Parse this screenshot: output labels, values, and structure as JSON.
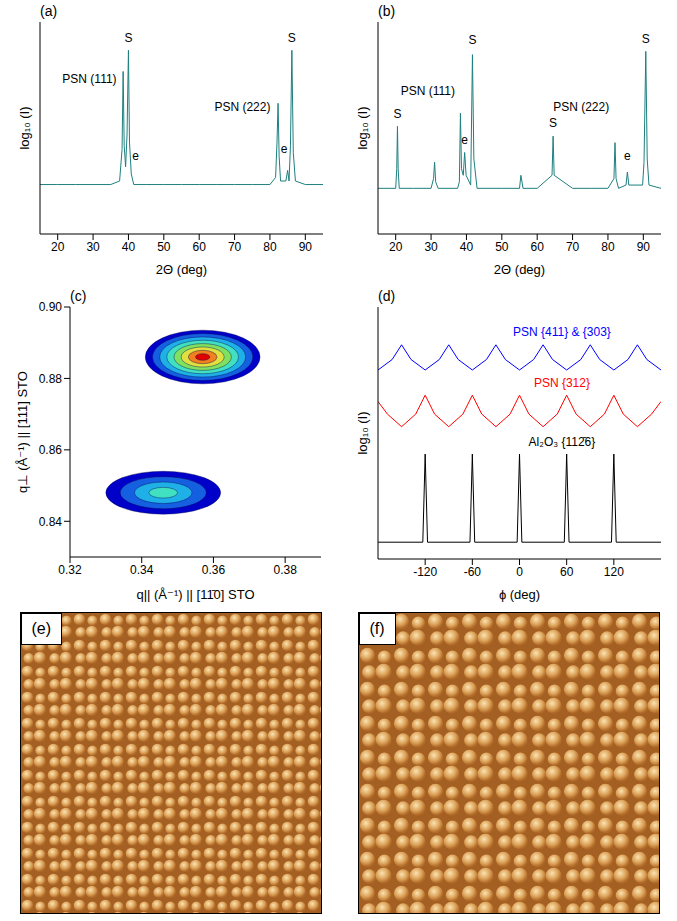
{
  "chart_data": [
    {
      "type": "line",
      "title": "(a)",
      "x_label": "2Θ (deg)",
      "y_label": "log₁₀ (I)",
      "xlim": [
        15,
        95
      ],
      "xticks": [
        20,
        30,
        40,
        50,
        60,
        70,
        80,
        90
      ],
      "ylim": [
        0,
        6
      ],
      "yticks": [],
      "tick_labels": "x",
      "series": [
        {
          "color": "#1f7f7f",
          "x": [
            15,
            20,
            25,
            30,
            35,
            37.5,
            38.2,
            38.5,
            38.8,
            39.2,
            39.6,
            40.0,
            40.3,
            40.8,
            41.5,
            45,
            50,
            55,
            60,
            65,
            70,
            75,
            80,
            81.6,
            82.0,
            82.3,
            82.6,
            83.0,
            84.5,
            85.0,
            85.4,
            85.8,
            86.2,
            86.6,
            87.2,
            90,
            95
          ],
          "values": [
            1.4,
            1.4,
            1.4,
            1.4,
            1.4,
            1.5,
            2.4,
            4.6,
            2.5,
            1.9,
            2.8,
            5.2,
            2.6,
            1.7,
            1.4,
            1.4,
            1.4,
            1.4,
            1.4,
            1.4,
            1.4,
            1.4,
            1.4,
            1.6,
            2.6,
            3.7,
            2.2,
            1.5,
            1.5,
            1.8,
            1.5,
            2.5,
            5.2,
            2.3,
            1.5,
            1.4,
            1.4
          ]
        }
      ],
      "annotations": [
        {
          "text": "PSN (111)",
          "x": 37.5,
          "y": 4.4
        },
        {
          "text": "S",
          "x": 40.0,
          "y": 5.55
        },
        {
          "text": "e",
          "x": 42,
          "y": 2.2
        },
        {
          "text": "PSN (222)",
          "x": 81,
          "y": 3.6
        },
        {
          "text": "e",
          "x": 84,
          "y": 2.4
        },
        {
          "text": "S",
          "x": 86.2,
          "y": 5.55
        }
      ]
    },
    {
      "type": "line",
      "title": "(b)",
      "x_label": "2Θ (deg)",
      "y_label": "log₁₀ (I)",
      "xlim": [
        15,
        95
      ],
      "xticks": [
        20,
        30,
        40,
        50,
        60,
        70,
        80,
        90
      ],
      "ylim": [
        0,
        6.5
      ],
      "yticks": [],
      "tick_labels": "x",
      "series": [
        {
          "color": "#1f7f7f",
          "x": [
            15,
            20,
            20.3,
            20.5,
            20.7,
            21,
            25,
            30,
            30.7,
            31,
            31.3,
            32,
            37.5,
            38.0,
            38.3,
            38.6,
            39.1,
            39.5,
            39.9,
            41.2,
            41.7,
            42.1,
            43,
            50,
            55,
            55.4,
            56,
            60,
            64.2,
            64.5,
            64.8,
            70,
            75,
            80,
            81.7,
            82.0,
            82.3,
            83,
            85.1,
            85.5,
            85.9,
            89.8,
            90.2,
            90.7,
            91.1,
            91.6,
            95
          ],
          "values": [
            1.4,
            1.4,
            2.0,
            3.3,
            2.0,
            1.4,
            1.4,
            1.4,
            1.7,
            2.2,
            1.6,
            1.4,
            1.4,
            1.6,
            3.7,
            2.0,
            1.8,
            2.5,
            1.8,
            1.5,
            5.5,
            2.3,
            1.4,
            1.4,
            1.4,
            1.8,
            1.4,
            1.4,
            1.8,
            3.0,
            1.8,
            1.4,
            1.4,
            1.4,
            1.7,
            2.8,
            1.7,
            1.4,
            1.5,
            1.9,
            1.5,
            1.5,
            2.2,
            5.6,
            2.3,
            1.5,
            1.4
          ]
        }
      ],
      "annotations": [
        {
          "text": "S",
          "x": 20.5,
          "y": 3.7
        },
        {
          "text": "PSN (111)",
          "x": 37.6,
          "y": 4.4
        },
        {
          "text": "e",
          "x": 39.5,
          "y": 2.9
        },
        {
          "text": "S",
          "x": 41.7,
          "y": 5.95
        },
        {
          "text": "S",
          "x": 64.5,
          "y": 3.4
        },
        {
          "text": "PSN (222)",
          "x": 81.2,
          "y": 3.9
        },
        {
          "text": "e",
          "x": 85.5,
          "y": 2.4
        },
        {
          "text": "S",
          "x": 90.7,
          "y": 6.0
        }
      ]
    },
    {
      "type": "contour",
      "title": "(c)",
      "x_label": "q|| (Å⁻¹) || [11̄0] STO",
      "y_label": "q⊥ (Å⁻¹) || [111] STO",
      "xlim": [
        0.32,
        0.39
      ],
      "xticks": [
        0.32,
        0.34,
        0.36,
        0.38
      ],
      "ylim": [
        0.83,
        0.9
      ],
      "yticks": [
        0.84,
        0.86,
        0.88,
        {
          "value": 0.9,
          "label": "0.90"
        }
      ],
      "colors": [
        "#0000c8",
        "#1560e0",
        "#20b0e8",
        "#40e0c0",
        "#80e060",
        "#e0e040",
        "#f08020",
        "#e00000"
      ],
      "spots": [
        {
          "x": 0.357,
          "y": 0.886,
          "x_width": 0.032,
          "y_width": 0.015,
          "levels": 8
        },
        {
          "x": 0.346,
          "y": 0.848,
          "x_width": 0.032,
          "y_width": 0.012,
          "levels": 4
        }
      ]
    },
    {
      "type": "line",
      "title": "(d)",
      "x_label": "ϕ (deg)",
      "y_label": "log₁₀ (I)",
      "xlim": [
        -180,
        180
      ],
      "xticks": [
        -120,
        -60,
        0,
        60,
        120
      ],
      "ylim": [
        0,
        12
      ],
      "yticks": [],
      "tick_labels": "x",
      "series": [
        {
          "name": "PSN {411} & {303}",
          "color": "#0000ff",
          "x": [
            -180,
            -162,
            -150,
            -138,
            -120,
            -102,
            -90,
            -78,
            -60,
            -42,
            -30,
            -18,
            0,
            18,
            30,
            42,
            60,
            78,
            90,
            102,
            120,
            138,
            150,
            162,
            180
          ],
          "values": [
            9.0,
            9.5,
            10.2,
            9.5,
            9.0,
            9.5,
            10.2,
            9.5,
            9.0,
            9.5,
            10.2,
            9.5,
            9.0,
            9.5,
            10.2,
            9.5,
            9.0,
            9.5,
            10.2,
            9.5,
            9.0,
            9.5,
            10.2,
            9.5,
            9.0
          ]
        },
        {
          "name": "PSN {312}",
          "color": "#ff0000",
          "x": [
            -180,
            -168,
            -150,
            -132,
            -120,
            -108,
            -90,
            -72,
            -60,
            -48,
            -30,
            -12,
            0,
            12,
            30,
            48,
            60,
            72,
            90,
            108,
            120,
            132,
            150,
            168,
            180
          ],
          "values": [
            7.5,
            6.9,
            6.3,
            6.9,
            7.8,
            6.9,
            6.3,
            6.9,
            7.8,
            6.9,
            6.3,
            6.9,
            7.8,
            6.9,
            6.3,
            6.9,
            7.8,
            6.9,
            6.3,
            6.9,
            7.8,
            6.9,
            6.3,
            6.9,
            7.5
          ]
        },
        {
          "name": "Al₂O₃ {112̄6}",
          "color": "#000000",
          "x": [
            -180,
            -123,
            -120,
            -117,
            -63,
            -60,
            -57,
            -3,
            0,
            3,
            57,
            60,
            63,
            117,
            120,
            123,
            180
          ],
          "values": [
            0.8,
            0.8,
            5.0,
            0.8,
            0.8,
            5.0,
            0.8,
            0.8,
            5.0,
            0.8,
            0.8,
            5.0,
            0.8,
            0.8,
            5.0,
            0.8,
            0.8
          ]
        }
      ]
    },
    {
      "type": "image",
      "title": "(e)"
    },
    {
      "type": "image",
      "title": "(f)"
    }
  ]
}
